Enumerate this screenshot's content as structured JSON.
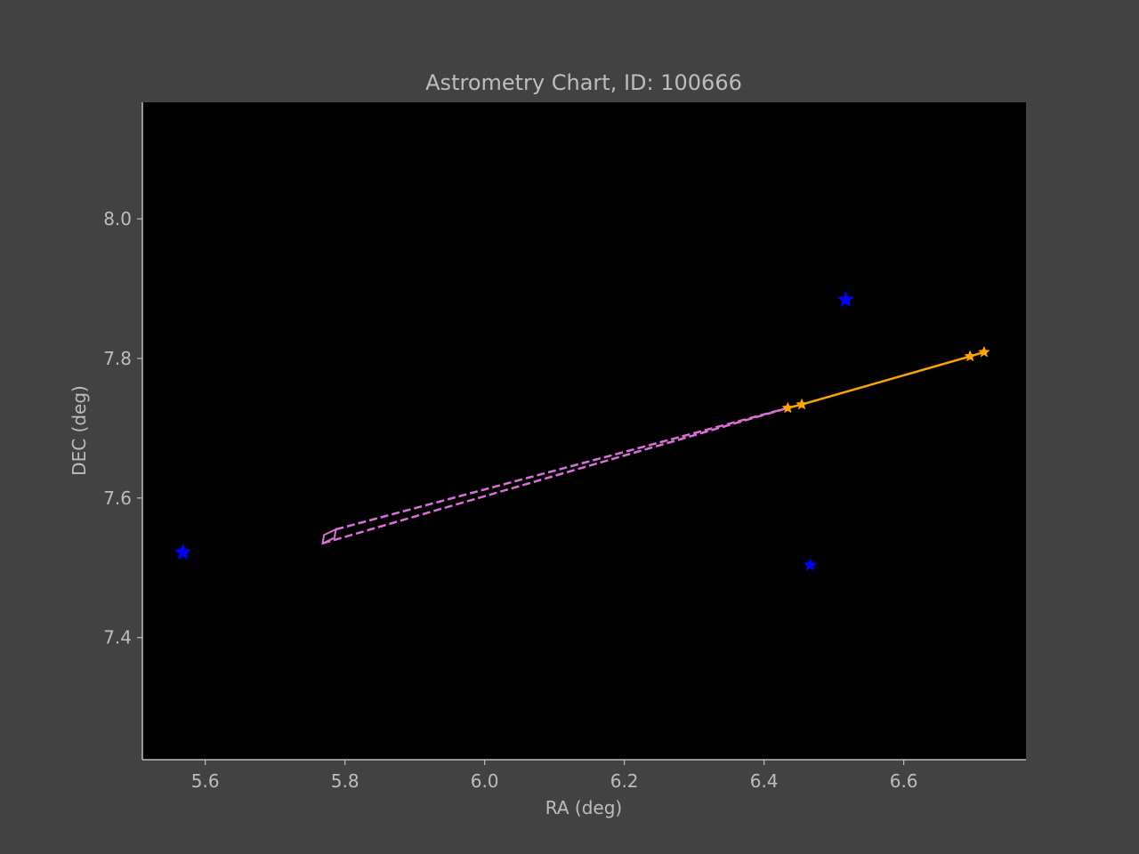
{
  "chart_data": {
    "type": "scatter",
    "title": "Astrometry Chart, ID: 100666",
    "xlabel": "RA (deg)",
    "ylabel": "DEC (deg)",
    "xlim": [
      5.51,
      6.775
    ],
    "ylim": [
      7.225,
      8.167
    ],
    "x_ticks": [
      5.6,
      5.8,
      6.0,
      6.2,
      6.4,
      6.6
    ],
    "x_tick_labels": [
      "5.6",
      "5.8",
      "6.0",
      "6.2",
      "6.4",
      "6.6"
    ],
    "y_ticks": [
      7.4,
      7.6,
      7.8,
      8.0
    ],
    "y_tick_labels": [
      "7.4",
      "7.6",
      "7.8",
      "8.0"
    ],
    "grid": false,
    "colors": {
      "figure_bg": "#424242",
      "plot_bg": "#000000",
      "axis": "#bdbdbd",
      "reference_stars": "#0000ff",
      "track": "#ffa500",
      "predicted": "#da70d6"
    },
    "reference_stars": [
      {
        "x": 5.568,
        "y": 7.522,
        "size": "large"
      },
      {
        "x": 6.517,
        "y": 7.884,
        "size": "large"
      },
      {
        "x": 6.466,
        "y": 7.504,
        "size": "small"
      }
    ],
    "track": {
      "x": [
        6.434,
        6.454,
        6.695,
        6.715
      ],
      "y": [
        7.729,
        7.734,
        7.803,
        7.809
      ]
    },
    "predicted_region": {
      "box_x": [
        5.768,
        5.785,
        5.787,
        5.77
      ],
      "box_y": [
        7.535,
        7.543,
        7.555,
        7.547
      ],
      "lines": [
        {
          "x": [
            5.787,
            6.434
          ],
          "y": [
            7.555,
            7.729
          ]
        },
        {
          "x": [
            5.768,
            6.434
          ],
          "y": [
            7.535,
            7.729
          ]
        }
      ]
    }
  }
}
